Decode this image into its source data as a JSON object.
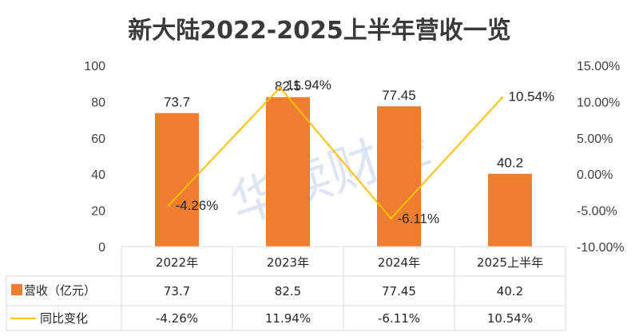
{
  "watermark": "华读财经",
  "chart_data": {
    "type": "bar",
    "title": "新大陆2022-2025上半年营收一览",
    "categories": [
      "2022年",
      "2023年",
      "2024年",
      "2025上半年"
    ],
    "series": [
      {
        "name": "营收（亿元）",
        "type": "bar",
        "axis": "left",
        "color": "#ED7D31",
        "values": [
          73.7,
          82.5,
          77.45,
          40.2
        ],
        "labels": [
          "73.7",
          "82.5",
          "77.45",
          "40.2"
        ]
      },
      {
        "name": "同比变化",
        "type": "line",
        "axis": "right",
        "color": "#FFC000",
        "values": [
          -4.26,
          11.94,
          -6.11,
          10.54
        ],
        "labels": [
          "-4.26%",
          "11.94%",
          "-6.11%",
          "10.54%"
        ]
      }
    ],
    "y_left": {
      "min": 0,
      "max": 100,
      "ticks": [
        "0",
        "20",
        "40",
        "60",
        "80",
        "100"
      ]
    },
    "y_right": {
      "min": -10,
      "max": 15,
      "unit": "%",
      "ticks": [
        "-10.00%",
        "-5.00%",
        "0.00%",
        "5.00%",
        "10.00%",
        "15.00%"
      ]
    },
    "grid": false,
    "legend": "data-table"
  }
}
